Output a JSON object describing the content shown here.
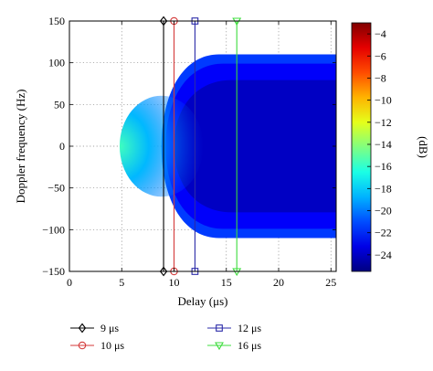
{
  "chart_data": {
    "type": "heatmap",
    "title": "",
    "xlabel": "Delay (μs)",
    "ylabel": "Doppler frequency (Hz)",
    "xlim": [
      0,
      25.5
    ],
    "ylim": [
      -150,
      150
    ],
    "x_ticks": [
      "0",
      "5",
      "10",
      "15",
      "20",
      "25"
    ],
    "y_ticks": [
      "150",
      "100",
      "50",
      "0",
      "−50",
      "−100",
      "−150"
    ],
    "grid": true,
    "colorbar": {
      "label": "(dB)",
      "range": [
        -25.5,
        -3
      ],
      "ticks": [
        "−4",
        "−6",
        "−8",
        "−10",
        "−12",
        "−14",
        "−16",
        "−18",
        "−20",
        "−22",
        "−24"
      ],
      "colormap": "jet"
    },
    "region": {
      "onset_delay": 8.8,
      "doppler_limit": 110,
      "level_db": -24,
      "near_onset_level_db": -17
    },
    "delay_markers": [
      {
        "name": "9 μs",
        "delay": 9,
        "color": "#000000",
        "marker": "diamond"
      },
      {
        "name": "10 μs",
        "delay": 10,
        "color": "#d43a3a",
        "marker": "circle"
      },
      {
        "name": "12 μs",
        "delay": 12,
        "color": "#2a2aa8",
        "marker": "square"
      },
      {
        "name": "16 μs",
        "delay": 16,
        "color": "#3ddc3d",
        "marker": "triangle-down"
      }
    ],
    "legend_placement": "bottom"
  }
}
